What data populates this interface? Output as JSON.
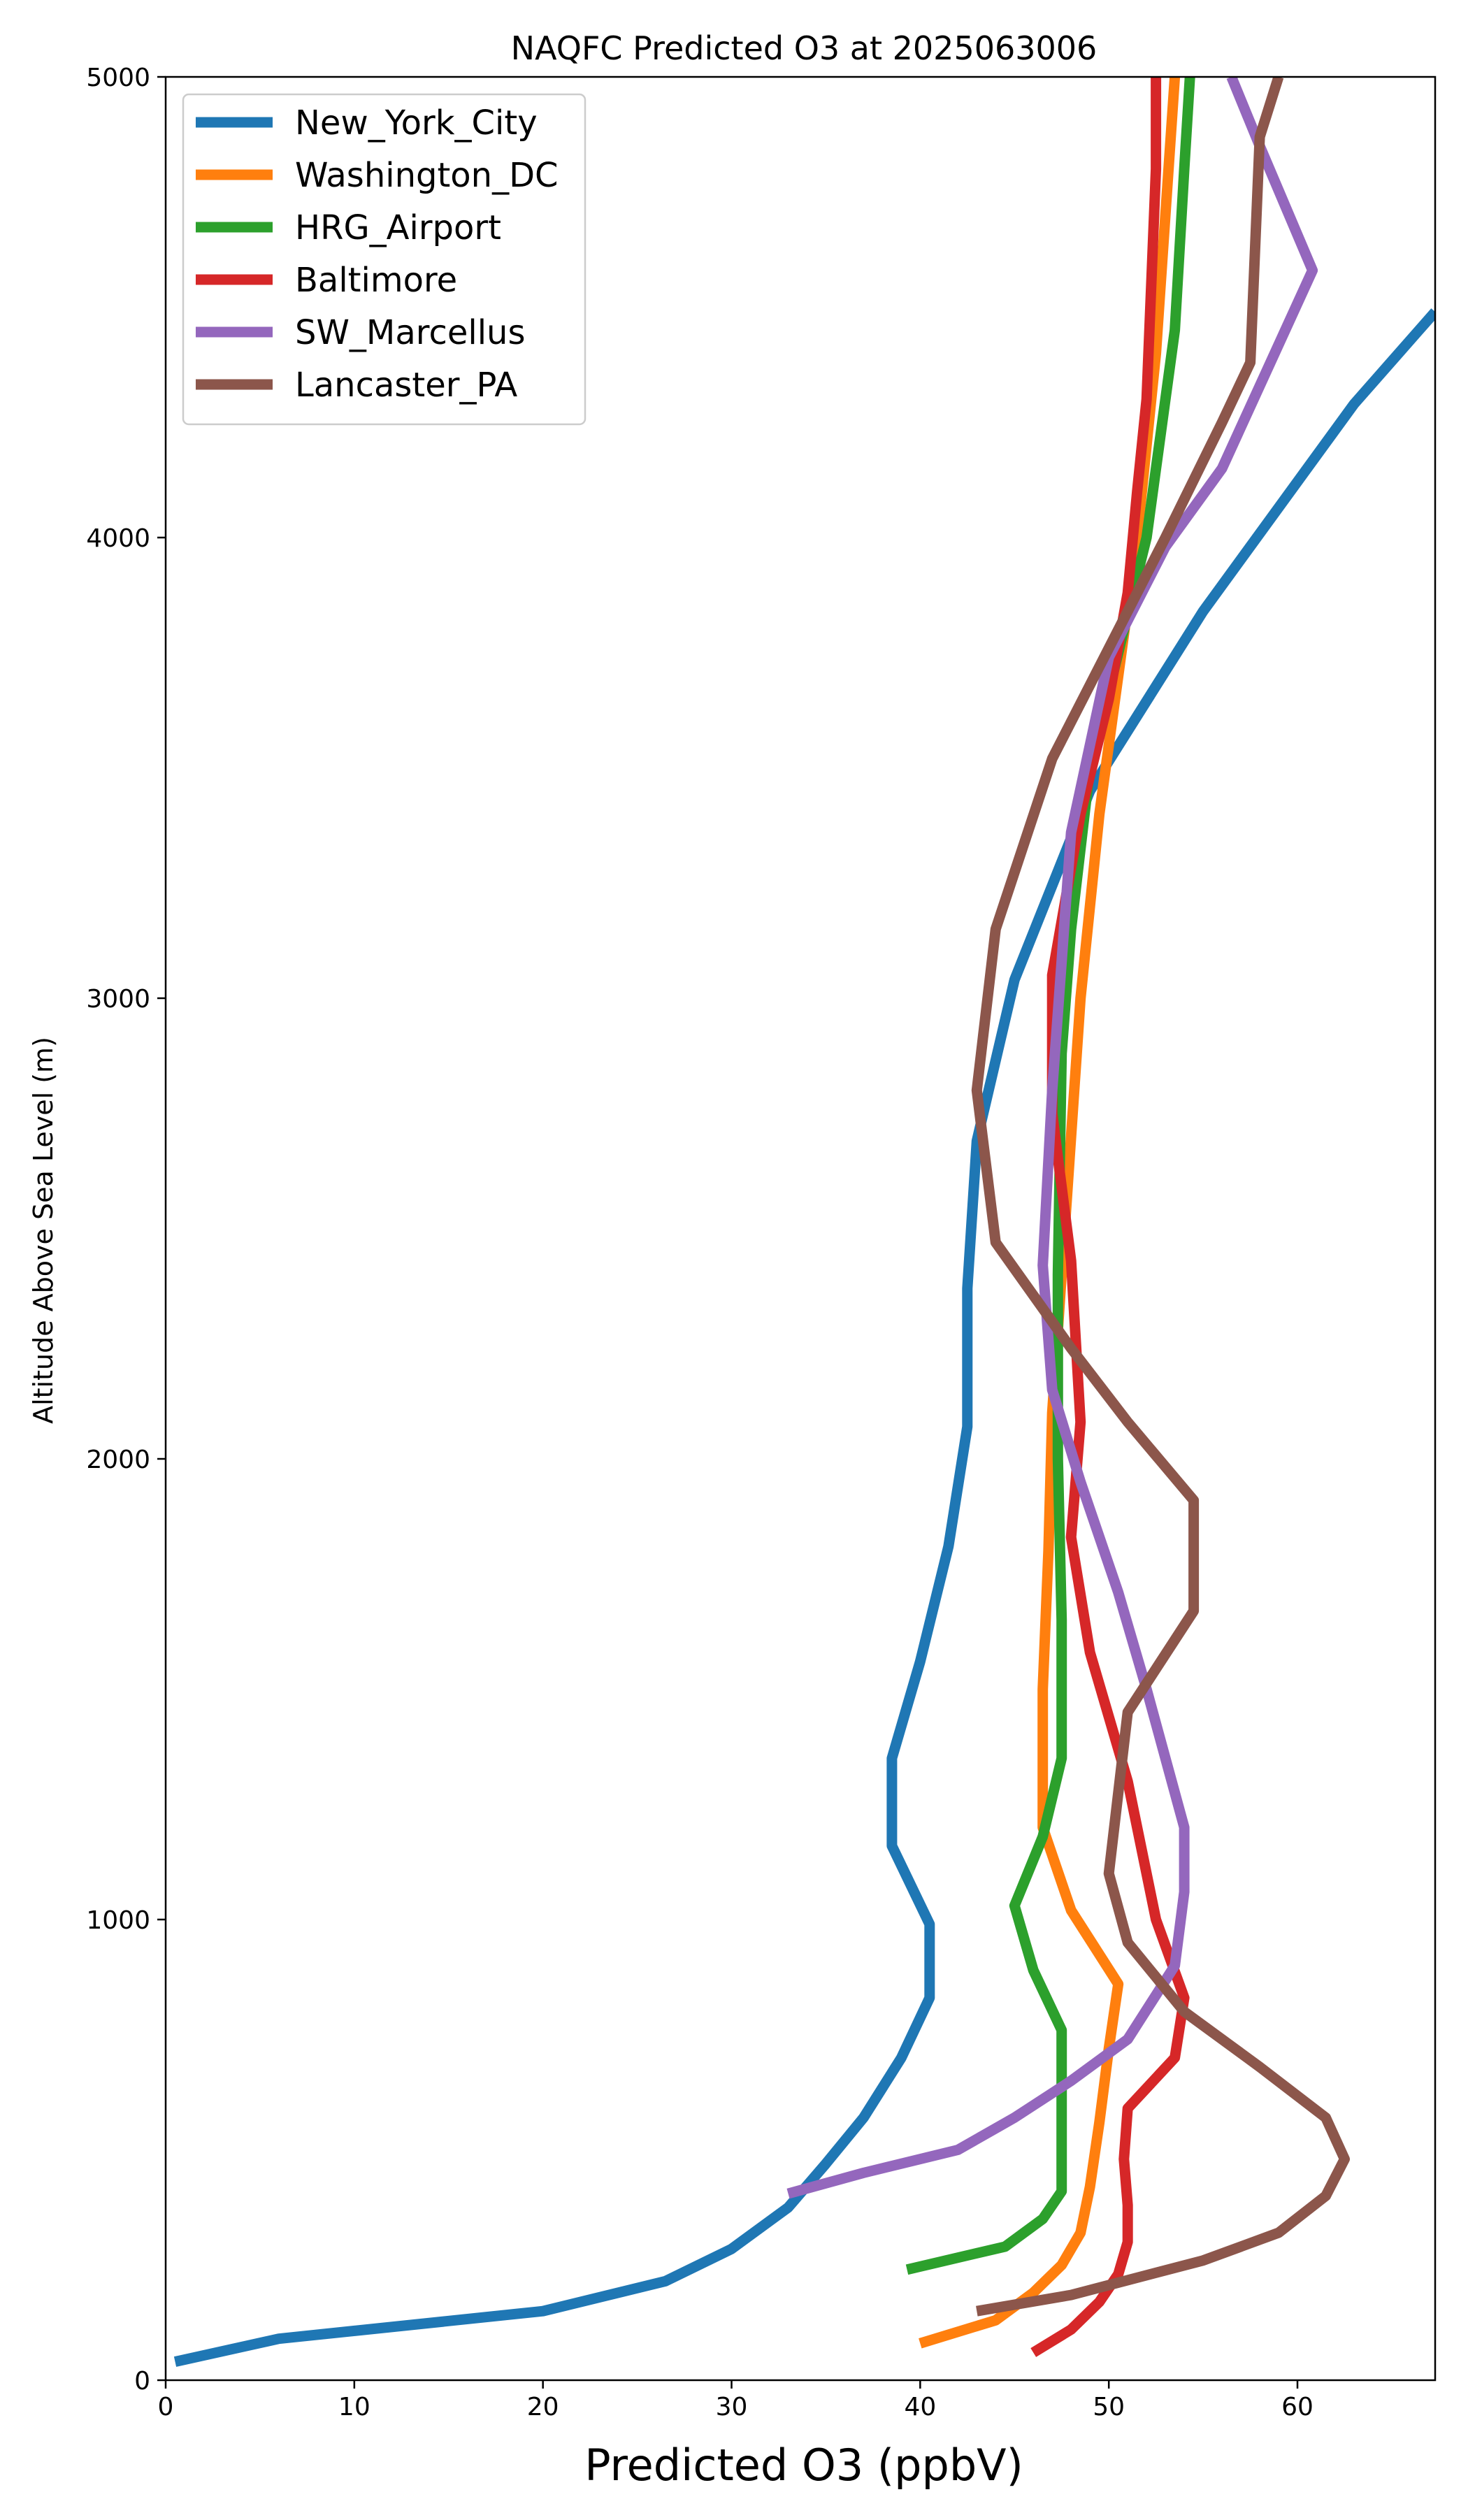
{
  "chart_data": {
    "type": "line",
    "title": "NAQFC Predicted O3 at 2025063006",
    "xlabel": "Predicted O3 (ppbV)",
    "ylabel": "Altitude Above Sea Level (m)",
    "xlim": [
      0,
      67.3
    ],
    "ylim": [
      0,
      5000
    ],
    "xticks": [
      0,
      10,
      20,
      30,
      40,
      50,
      60
    ],
    "yticks": [
      0,
      1000,
      2000,
      3000,
      4000,
      5000
    ],
    "grid": false,
    "legend_position": "upper-left",
    "series": [
      {
        "name": "New_York_City",
        "color": "#1f77b4",
        "points": [
          [
            0.5,
            40
          ],
          [
            6,
            90
          ],
          [
            20,
            150
          ],
          [
            26.5,
            215
          ],
          [
            30,
            285
          ],
          [
            33,
            375
          ],
          [
            35,
            470
          ],
          [
            37,
            570
          ],
          [
            39,
            700
          ],
          [
            40.5,
            830
          ],
          [
            40.5,
            990
          ],
          [
            38.5,
            1160
          ],
          [
            38.5,
            1350
          ],
          [
            40,
            1560
          ],
          [
            41.5,
            1810
          ],
          [
            42.5,
            2070
          ],
          [
            42.5,
            2370
          ],
          [
            43,
            2690
          ],
          [
            45,
            3040
          ],
          [
            49,
            3450
          ],
          [
            55,
            3840
          ],
          [
            63,
            4290
          ],
          [
            67.3,
            4490
          ]
        ]
      },
      {
        "name": "Washington_DC",
        "color": "#ff7f0e",
        "points": [
          [
            40,
            80
          ],
          [
            44,
            130
          ],
          [
            46,
            190
          ],
          [
            47.5,
            250
          ],
          [
            48.5,
            320
          ],
          [
            49,
            420
          ],
          [
            49.5,
            560
          ],
          [
            50,
            720
          ],
          [
            50.5,
            860
          ],
          [
            48,
            1020
          ],
          [
            46.5,
            1200
          ],
          [
            46.5,
            1500
          ],
          [
            46.8,
            1800
          ],
          [
            47,
            2100
          ],
          [
            47.5,
            2400
          ],
          [
            48,
            2700
          ],
          [
            48.5,
            3000
          ],
          [
            49.5,
            3400
          ],
          [
            50.5,
            3700
          ],
          [
            51.5,
            4000
          ],
          [
            52.5,
            4400
          ],
          [
            53.5,
            5000
          ]
        ]
      },
      {
        "name": "HRG_Airport",
        "color": "#2ca02c",
        "points": [
          [
            39.3,
            240
          ],
          [
            44.5,
            290
          ],
          [
            46.5,
            350
          ],
          [
            47.5,
            410
          ],
          [
            47.5,
            540
          ],
          [
            47.5,
            650
          ],
          [
            47.5,
            760
          ],
          [
            46,
            890
          ],
          [
            45,
            1030
          ],
          [
            46.5,
            1180
          ],
          [
            47.5,
            1350
          ],
          [
            47.5,
            1650
          ],
          [
            47.3,
            2000
          ],
          [
            47.3,
            2400
          ],
          [
            47.5,
            2880
          ],
          [
            48,
            3150
          ],
          [
            49,
            3500
          ],
          [
            50.5,
            3750
          ],
          [
            52,
            4000
          ],
          [
            53.5,
            4450
          ],
          [
            54,
            4800
          ],
          [
            54.3,
            5000
          ]
        ]
      },
      {
        "name": "Baltimore",
        "color": "#d62728",
        "points": [
          [
            46,
            60
          ],
          [
            48,
            110
          ],
          [
            49.5,
            170
          ],
          [
            50.5,
            230
          ],
          [
            51,
            300
          ],
          [
            51,
            380
          ],
          [
            50.8,
            480
          ],
          [
            51,
            590
          ],
          [
            53.5,
            700
          ],
          [
            54,
            830
          ],
          [
            52.5,
            1000
          ],
          [
            51,
            1300
          ],
          [
            49,
            1580
          ],
          [
            48,
            1830
          ],
          [
            48.5,
            2080
          ],
          [
            48,
            2430
          ],
          [
            47,
            2750
          ],
          [
            47,
            3050
          ],
          [
            48.5,
            3400
          ],
          [
            50,
            3650
          ],
          [
            51,
            3880
          ],
          [
            51.5,
            4100
          ],
          [
            52,
            4300
          ],
          [
            52.5,
            4800
          ],
          [
            52.5,
            5000
          ]
        ]
      },
      {
        "name": "SW_Marcellus",
        "color": "#9467bd",
        "points": [
          [
            33,
            405
          ],
          [
            37,
            450
          ],
          [
            42,
            500
          ],
          [
            45,
            570
          ],
          [
            48,
            650
          ],
          [
            51,
            740
          ],
          [
            53.5,
            900
          ],
          [
            54,
            1060
          ],
          [
            54,
            1200
          ],
          [
            52,
            1500
          ],
          [
            50.5,
            1710
          ],
          [
            48.5,
            1950
          ],
          [
            47,
            2150
          ],
          [
            46.5,
            2420
          ],
          [
            47,
            2800
          ],
          [
            48,
            3360
          ],
          [
            50,
            3740
          ],
          [
            53,
            3980
          ],
          [
            56,
            4150
          ],
          [
            60.8,
            4580
          ],
          [
            58,
            4850
          ],
          [
            56.5,
            5000
          ]
        ]
      },
      {
        "name": "Lancaster_PA",
        "color": "#8c564b",
        "points": [
          [
            43,
            150
          ],
          [
            48,
            185
          ],
          [
            55,
            260
          ],
          [
            59,
            320
          ],
          [
            61.5,
            400
          ],
          [
            62.5,
            480
          ],
          [
            61.5,
            570
          ],
          [
            58,
            680
          ],
          [
            54,
            800
          ],
          [
            51,
            950
          ],
          [
            50,
            1100
          ],
          [
            51,
            1450
          ],
          [
            54.5,
            1670
          ],
          [
            54.5,
            1910
          ],
          [
            51,
            2080
          ],
          [
            48,
            2240
          ],
          [
            44,
            2470
          ],
          [
            43,
            2800
          ],
          [
            44,
            3150
          ],
          [
            47,
            3520
          ],
          [
            50,
            3760
          ],
          [
            53,
            4000
          ],
          [
            56,
            4250
          ],
          [
            57.5,
            4380
          ],
          [
            58,
            4870
          ],
          [
            59,
            5000
          ]
        ]
      }
    ]
  }
}
